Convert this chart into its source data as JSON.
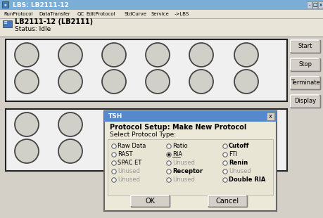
{
  "title_bar": "LBS: LB2111-12",
  "title_bar_color": "#7aaed6",
  "title_bar_text_color": "#ffffff",
  "menu_items": [
    "RunProtocol",
    "DataTransfer",
    "QC",
    "EditProtocol",
    "StdCurve",
    "Service",
    "->LBS"
  ],
  "menu_bg": "#e8e5d8",
  "device_label": "LB2111-12 (LB2111)",
  "status_label": "Status: Idle",
  "bg_color": "#d4d0c8",
  "circle_fill": "#d0cfc8",
  "circle_border": "#444444",
  "button_labels": [
    "Start",
    "Stop",
    "Terminate",
    "Display"
  ],
  "dialog_title": "TSH",
  "dialog_title_bg": "#5588cc",
  "dialog_title_text": "#ffffff",
  "dialog_bg": "#ece9d8",
  "dialog_header": "Protocol Setup: Make New Protocol",
  "dialog_select_label": "Select Protocol Type:",
  "radio_options": [
    [
      "Raw Data",
      "Ratio",
      "Cutoff"
    ],
    [
      "RAST",
      "RIA",
      "FTI"
    ],
    [
      "SPAC ET",
      "Unused",
      "Renin"
    ],
    [
      "Unused",
      "Receptor",
      "Unused"
    ],
    [
      "Unused",
      "Unused",
      "Double RIA"
    ]
  ],
  "selected_radio": [
    1,
    1
  ],
  "bold_options": [
    "Cutoff",
    "Renin",
    "Receptor",
    "Double RIA"
  ],
  "grayed_options": [
    "Unused"
  ],
  "ok_button": "OK",
  "cancel_button": "Cancel"
}
